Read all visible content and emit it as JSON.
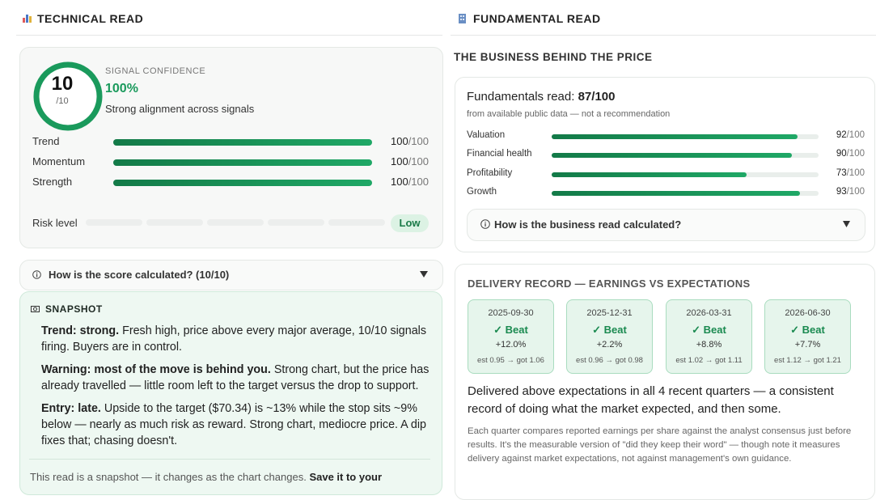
{
  "technical": {
    "header": "TECHNICAL READ",
    "score": {
      "value": 10,
      "max": 10,
      "max_label": "/10",
      "kicker": "SIGNAL CONFIDENCE",
      "confidence": "100%",
      "summary": "Strong alignment across signals"
    },
    "bars": [
      {
        "label": "Trend",
        "value": 100,
        "max": 100,
        "max_label": "/100"
      },
      {
        "label": "Momentum",
        "value": 100,
        "max": 100,
        "max_label": "/100"
      },
      {
        "label": "Strength",
        "value": 100,
        "max": 100,
        "max_label": "/100"
      }
    ],
    "risk": {
      "label": "Risk level",
      "level": "Low"
    },
    "accordion": "How is the score calculated? (10/10)",
    "snapshot": {
      "title": "SNAPSHOT",
      "paragraphs": [
        {
          "lead": "Trend: strong.",
          "text": "Fresh high, price above every major average, 10/10 signals firing. Buyers are in control."
        },
        {
          "lead": "Warning: most of the move is behind you.",
          "text": "Strong chart, but the price has already travelled — little room left to the target versus the drop to support."
        },
        {
          "lead": "Entry: late.",
          "text": "Upside to the target ($70.34) is ~13% while the stop sits ~9% below — nearly as much risk as reward. Strong chart, mediocre price. A dip fixes that; chasing doesn't."
        }
      ],
      "footer": "This read is a snapshot — it changes as the chart changes.",
      "footer_bold": "Save it to your"
    }
  },
  "fundamental": {
    "header": "FUNDAMENTAL READ",
    "subheader": "THE BUSINESS BEHIND THE PRICE",
    "read_label": "Fundamentals read:",
    "read_score": "87/100",
    "read_note": "from available public data — not a recommendation",
    "bars": [
      {
        "label": "Valuation",
        "value": 92,
        "max": 100,
        "max_label": "/100"
      },
      {
        "label": "Financial health",
        "value": 90,
        "max": 100,
        "max_label": "/100"
      },
      {
        "label": "Profitability",
        "value": 73,
        "max": 100,
        "max_label": "/100"
      },
      {
        "label": "Growth",
        "value": 93,
        "max": 100,
        "max_label": "/100"
      }
    ],
    "accordion": "How is the business read calculated?",
    "delivery": {
      "title": "DELIVERY RECORD — EARNINGS VS EXPECTATIONS",
      "quarters": [
        {
          "date": "2025-09-30",
          "result": "✓ Beat",
          "surprise": "+12.0%",
          "detail": "est 0.95 → got 1.06"
        },
        {
          "date": "2025-12-31",
          "result": "✓ Beat",
          "surprise": "+2.2%",
          "detail": "est 0.96 → got 0.98"
        },
        {
          "date": "2026-03-31",
          "result": "✓ Beat",
          "surprise": "+8.8%",
          "detail": "est 1.02 → got 1.11"
        },
        {
          "date": "2026-06-30",
          "result": "✓ Beat",
          "surprise": "+7.7%",
          "detail": "est 1.12 → got 1.21"
        }
      ],
      "summary": "Delivered above expectations in all 4 recent quarters — a consistent record of doing what the market expected, and then some.",
      "note": "Each quarter compares reported earnings per share against the analyst consensus just before results. It's the measurable version of \"did they keep their word\" — though note it measures delivery against market expectations, not against management's own guidance."
    }
  }
}
